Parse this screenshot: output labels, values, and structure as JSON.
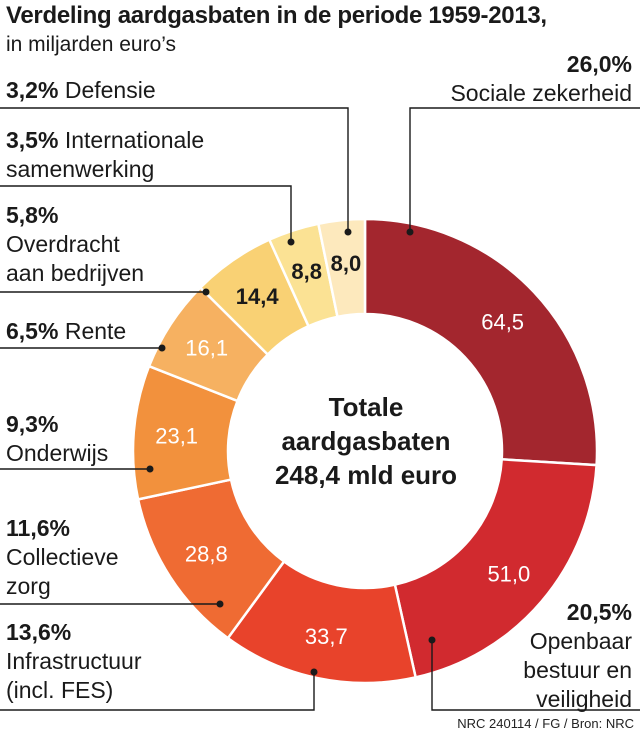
{
  "title": "Verdeling aardgasbaten in de periode 1959-2013,",
  "subtitle": "in miljarden euro’s",
  "center_label": [
    "Totale",
    "aardgasbaten",
    "248,4 mld euro"
  ],
  "source": "NRC 240114 / FG / Bron: NRC",
  "chart_data": {
    "type": "pie",
    "variant": "donut",
    "total": 248.4,
    "slices": [
      {
        "name": "Sociale zekerheid",
        "value": 64.5,
        "value_label": "64,5",
        "percent": "26,0%",
        "color": "#a3262e"
      },
      {
        "name": "Openbaar bestuur en veiligheid",
        "value": 51.0,
        "value_label": "51,0",
        "percent": "20,5%",
        "color": "#d12a2f"
      },
      {
        "name": "Infrastructuur (incl. FES)",
        "value": 33.7,
        "value_label": "33,7",
        "percent": "13,6%",
        "color": "#e8432b"
      },
      {
        "name": "Collectieve zorg",
        "value": 28.8,
        "value_label": "28,8",
        "percent": "11,6%",
        "color": "#ef6b33"
      },
      {
        "name": "Onderwijs",
        "value": 23.1,
        "value_label": "23,1",
        "percent": "9,3%",
        "color": "#f2913d"
      },
      {
        "name": "Rente",
        "value": 16.1,
        "value_label": "16,1",
        "percent": "6,5%",
        "color": "#f6b161"
      },
      {
        "name": "Overdracht aan bedrijven",
        "value": 14.4,
        "value_label": "14,4",
        "percent": "5,8%",
        "color": "#f9d174"
      },
      {
        "name": "Internationale samenwerking",
        "value": 8.8,
        "value_label": "8,8",
        "percent": "3,5%",
        "color": "#fbe294"
      },
      {
        "name": "Defensie",
        "value": 8.0,
        "value_label": "8,0",
        "percent": "3,2%",
        "color": "#fde9bd"
      }
    ]
  },
  "labels": {
    "sociale": {
      "pct": "26,0%",
      "lines": [
        "Sociale zekerheid"
      ]
    },
    "openbaar": {
      "pct": "20,5%",
      "lines": [
        "Openbaar",
        "bestuur en",
        "veiligheid"
      ]
    },
    "infra": {
      "pct": "13,6%",
      "lines": [
        "Infrastructuur",
        "(incl. FES)"
      ]
    },
    "zorg": {
      "pct": "11,6%",
      "lines": [
        "Collectieve",
        "zorg"
      ]
    },
    "onderwijs": {
      "pct": "9,3%",
      "lines": [
        "Onderwijs"
      ]
    },
    "rente": {
      "pct": "6,5%",
      "name": "Rente"
    },
    "overdracht": {
      "pct": "5,8%",
      "lines": [
        "Overdracht",
        "aan bedrijven"
      ]
    },
    "internationaal": {
      "pct": "3,5%",
      "name": "Internationale",
      "lines": [
        "samenwerking"
      ]
    },
    "defensie": {
      "pct": "3,2%",
      "name": "Defensie"
    }
  }
}
